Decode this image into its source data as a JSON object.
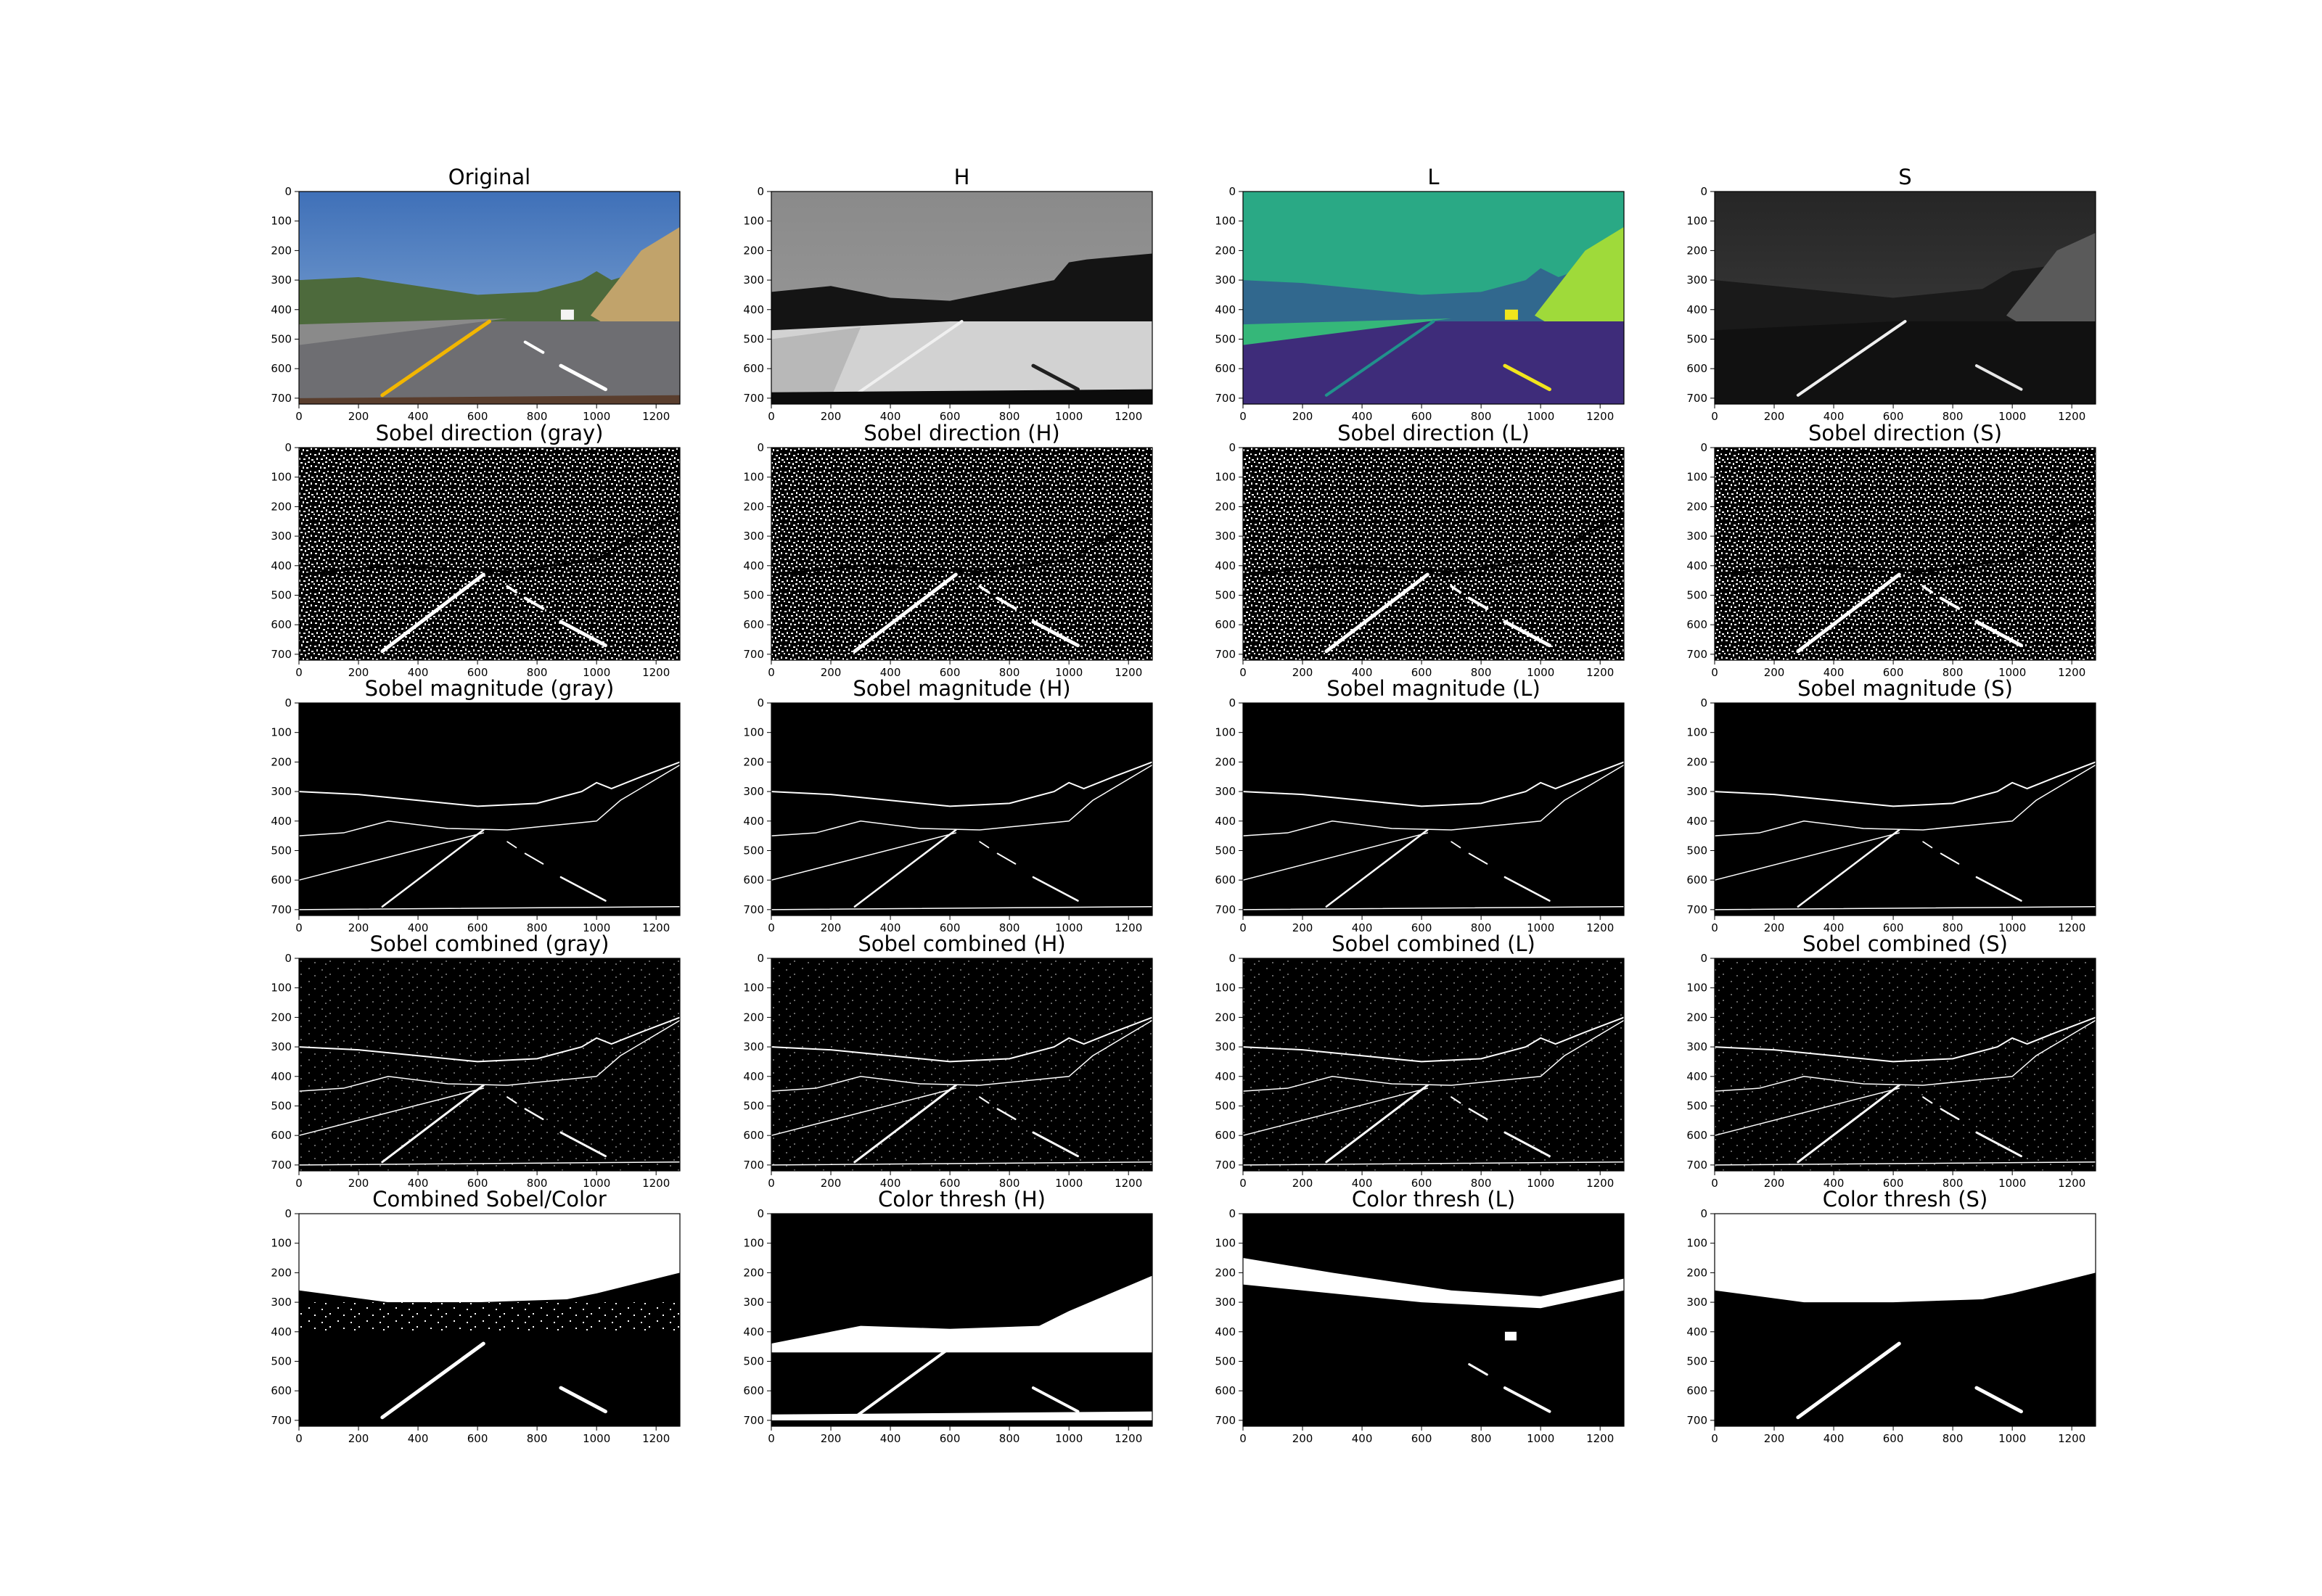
{
  "figure": {
    "panels": [
      {
        "title": "Original",
        "kind": "original",
        "rows": 0
      },
      {
        "title": "H",
        "kind": "hue",
        "rows": 0
      },
      {
        "title": "L",
        "kind": "lightness",
        "rows": 0
      },
      {
        "title": "S",
        "kind": "saturation",
        "rows": 0
      },
      {
        "title": "Sobel direction (gray)",
        "kind": "direction"
      },
      {
        "title": "Sobel direction (H)",
        "kind": "direction"
      },
      {
        "title": "Sobel direction (L)",
        "kind": "direction"
      },
      {
        "title": "Sobel direction (S)",
        "kind": "direction"
      },
      {
        "title": "Sobel magnitude (gray)",
        "kind": "magnitude"
      },
      {
        "title": "Sobel magnitude (H)",
        "kind": "magnitude"
      },
      {
        "title": "Sobel magnitude (L)",
        "kind": "magnitude"
      },
      {
        "title": "Sobel magnitude (S)",
        "kind": "magnitude"
      },
      {
        "title": "Sobel combined (gray)",
        "kind": "combined"
      },
      {
        "title": "Sobel combined (H)",
        "kind": "combined"
      },
      {
        "title": "Sobel combined (L)",
        "kind": "combined"
      },
      {
        "title": "Sobel combined (S)",
        "kind": "combined"
      },
      {
        "title": "Combined Sobel/Color",
        "kind": "combined-color"
      },
      {
        "title": "Color thresh (H)",
        "kind": "color-h"
      },
      {
        "title": "Color thresh (L)",
        "kind": "color-l"
      },
      {
        "title": "Color thresh (S)",
        "kind": "color-s"
      }
    ],
    "x_ticks": [
      "0",
      "200",
      "400",
      "600",
      "800",
      "1000",
      "1200"
    ],
    "y_ticks": [
      "0",
      "100",
      "200",
      "300",
      "400",
      "500",
      "600",
      "700"
    ],
    "colors": {
      "sky": "#4f7fc0",
      "lane_yellow": "#f2b600",
      "road": "#6e6e72",
      "hills": "#4d6a3c",
      "viridis_bg": "#2aa985",
      "viridis_dark": "#3e2c7a",
      "viridis_yellow": "#f1e51d"
    }
  }
}
